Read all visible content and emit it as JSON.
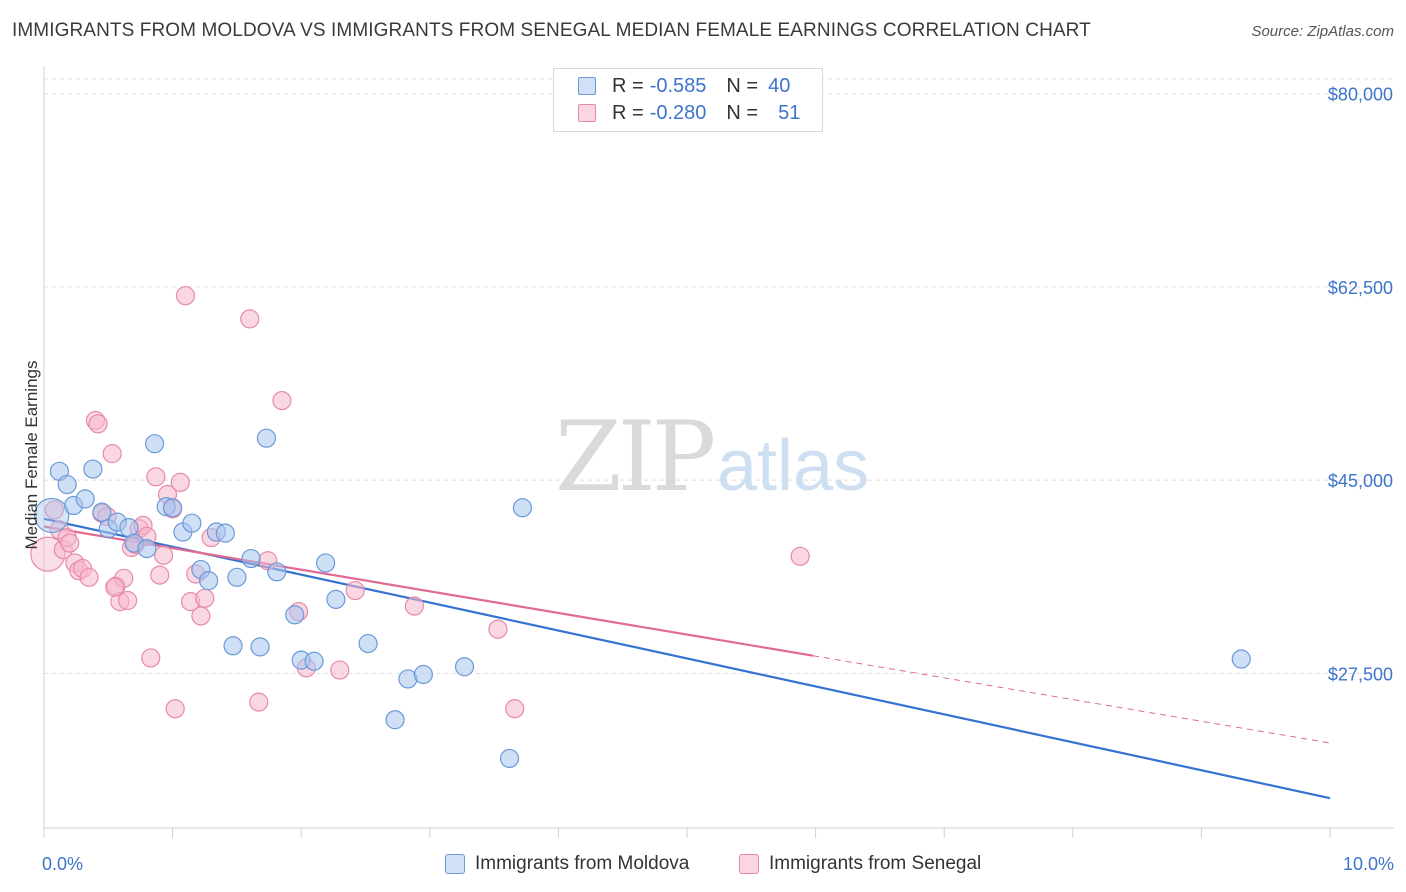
{
  "title": "IMMIGRANTS FROM MOLDOVA VS IMMIGRANTS FROM SENEGAL MEDIAN FEMALE EARNINGS CORRELATION CHART",
  "source": "Source: ZipAtlas.com",
  "watermark": {
    "zip": "ZIP",
    "atlas": "atlas"
  },
  "legend": {
    "r_label": "R =",
    "n_label": "N =",
    "rows": [
      {
        "r": "-0.585",
        "n": "40",
        "color": "#a8c5ee"
      },
      {
        "r": "-0.280",
        "n": "51",
        "color": "#f5b8cc"
      }
    ]
  },
  "bottom_legend": [
    {
      "label": "Immigrants from Moldova",
      "color": "#a8c5ee"
    },
    {
      "label": "Immigrants from Senegal",
      "color": "#f5b8cc"
    }
  ],
  "colors": {
    "moldova_fill": "#a8c5ee",
    "moldova_stroke": "#6b9ad8",
    "moldova_line": "#3572d1",
    "senegal_fill": "#f5b8cc",
    "senegal_stroke": "#e889a8",
    "senegal_line": "#e06a93",
    "tick_label": "#3d74cc",
    "grid": "#dddddd"
  },
  "chart_data": {
    "type": "scatter",
    "title": "IMMIGRANTS FROM MOLDOVA VS IMMIGRANTS FROM SENEGAL MEDIAN FEMALE EARNINGS CORRELATION CHART",
    "xlabel": "",
    "ylabel": "Median Female Earnings",
    "xlim": [
      0,
      10
    ],
    "ylim": [
      13500,
      82500
    ],
    "x_tick_labels": [
      "0.0%",
      "10.0%"
    ],
    "y_ticks": [
      {
        "value": 80000,
        "label": "$80,000"
      },
      {
        "value": 62500,
        "label": "$62,500"
      },
      {
        "value": 45000,
        "label": "$45,000"
      },
      {
        "value": 27500,
        "label": "$27,500"
      }
    ],
    "series": [
      {
        "name": "Immigrants from Moldova",
        "r": -0.585,
        "n": 40,
        "trend": {
          "x0": 0.0,
          "y0": 41500,
          "x1": 10.0,
          "y1": 16200
        },
        "points": [
          {
            "x": 0.06,
            "y": 41800,
            "big": true
          },
          {
            "x": 0.12,
            "y": 45800
          },
          {
            "x": 0.18,
            "y": 44600
          },
          {
            "x": 0.23,
            "y": 42700
          },
          {
            "x": 0.32,
            "y": 43300
          },
          {
            "x": 0.38,
            "y": 46000
          },
          {
            "x": 0.45,
            "y": 42100
          },
          {
            "x": 0.5,
            "y": 40600
          },
          {
            "x": 0.57,
            "y": 41200
          },
          {
            "x": 0.66,
            "y": 40700
          },
          {
            "x": 0.7,
            "y": 39300
          },
          {
            "x": 0.8,
            "y": 38800
          },
          {
            "x": 0.86,
            "y": 48300
          },
          {
            "x": 0.95,
            "y": 42600
          },
          {
            "x": 1.0,
            "y": 42500
          },
          {
            "x": 1.08,
            "y": 40300
          },
          {
            "x": 1.15,
            "y": 41100
          },
          {
            "x": 1.22,
            "y": 36900
          },
          {
            "x": 1.28,
            "y": 35900
          },
          {
            "x": 1.34,
            "y": 40300
          },
          {
            "x": 1.41,
            "y": 40200
          },
          {
            "x": 1.47,
            "y": 30000
          },
          {
            "x": 1.5,
            "y": 36200
          },
          {
            "x": 1.61,
            "y": 37900
          },
          {
            "x": 1.68,
            "y": 29900
          },
          {
            "x": 1.73,
            "y": 48800
          },
          {
            "x": 1.81,
            "y": 36700
          },
          {
            "x": 1.95,
            "y": 32800
          },
          {
            "x": 2.0,
            "y": 28700
          },
          {
            "x": 2.1,
            "y": 28600
          },
          {
            "x": 2.19,
            "y": 37500
          },
          {
            "x": 2.27,
            "y": 34200
          },
          {
            "x": 2.52,
            "y": 30200
          },
          {
            "x": 2.73,
            "y": 23300
          },
          {
            "x": 2.83,
            "y": 27000
          },
          {
            "x": 2.95,
            "y": 27400
          },
          {
            "x": 3.27,
            "y": 28100
          },
          {
            "x": 3.62,
            "y": 19800
          },
          {
            "x": 3.72,
            "y": 42500
          },
          {
            "x": 9.31,
            "y": 28800
          }
        ]
      },
      {
        "name": "Immigrants from Senegal",
        "r": -0.28,
        "n": 51,
        "trend": {
          "x0": 0.0,
          "y0": 40800,
          "x1": 5.98,
          "y1": 29100
        },
        "trend_dashed": {
          "x0": 5.98,
          "y0": 29100,
          "x1": 10.0,
          "y1": 21200
        },
        "points": [
          {
            "x": 0.03,
            "y": 38300,
            "big": true
          },
          {
            "x": 0.08,
            "y": 42300
          },
          {
            "x": 0.12,
            "y": 40500
          },
          {
            "x": 0.15,
            "y": 38700
          },
          {
            "x": 0.18,
            "y": 39800
          },
          {
            "x": 0.2,
            "y": 39300
          },
          {
            "x": 0.24,
            "y": 37500
          },
          {
            "x": 0.27,
            "y": 36800
          },
          {
            "x": 0.3,
            "y": 37000
          },
          {
            "x": 0.35,
            "y": 36200
          },
          {
            "x": 0.4,
            "y": 50400
          },
          {
            "x": 0.42,
            "y": 50100
          },
          {
            "x": 0.45,
            "y": 42000
          },
          {
            "x": 0.49,
            "y": 41700
          },
          {
            "x": 0.53,
            "y": 47400
          },
          {
            "x": 0.56,
            "y": 35400
          },
          {
            "x": 0.59,
            "y": 34000
          },
          {
            "x": 0.62,
            "y": 36100
          },
          {
            "x": 0.65,
            "y": 34100
          },
          {
            "x": 0.68,
            "y": 38900
          },
          {
            "x": 0.71,
            "y": 39200
          },
          {
            "x": 0.74,
            "y": 40600
          },
          {
            "x": 0.77,
            "y": 40900
          },
          {
            "x": 0.8,
            "y": 39900
          },
          {
            "x": 0.83,
            "y": 28900
          },
          {
            "x": 0.87,
            "y": 45300
          },
          {
            "x": 0.9,
            "y": 36400
          },
          {
            "x": 0.93,
            "y": 38200
          },
          {
            "x": 0.96,
            "y": 43700
          },
          {
            "x": 1.0,
            "y": 42400
          },
          {
            "x": 1.02,
            "y": 24300
          },
          {
            "x": 1.06,
            "y": 44800
          },
          {
            "x": 1.1,
            "y": 61700
          },
          {
            "x": 1.14,
            "y": 34000
          },
          {
            "x": 1.18,
            "y": 36500
          },
          {
            "x": 1.22,
            "y": 32700
          },
          {
            "x": 1.25,
            "y": 34300
          },
          {
            "x": 1.3,
            "y": 39800
          },
          {
            "x": 1.6,
            "y": 59600
          },
          {
            "x": 1.67,
            "y": 24900
          },
          {
            "x": 1.74,
            "y": 37700
          },
          {
            "x": 1.85,
            "y": 52200
          },
          {
            "x": 1.98,
            "y": 33100
          },
          {
            "x": 2.04,
            "y": 28000
          },
          {
            "x": 2.3,
            "y": 27800
          },
          {
            "x": 2.42,
            "y": 35000
          },
          {
            "x": 2.88,
            "y": 33600
          },
          {
            "x": 3.53,
            "y": 31500
          },
          {
            "x": 3.66,
            "y": 24300
          },
          {
            "x": 5.88,
            "y": 38100
          },
          {
            "x": 0.55,
            "y": 35300
          }
        ]
      }
    ]
  }
}
